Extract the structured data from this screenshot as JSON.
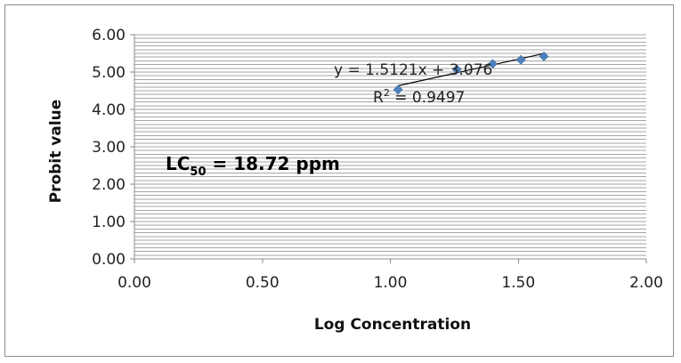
{
  "chart_data": {
    "type": "scatter",
    "xlabel": "Log Concentration",
    "ylabel": "Probit value",
    "xlim": [
      0,
      2
    ],
    "ylim": [
      0,
      6
    ],
    "x_ticks": [
      "0.00",
      "0.50",
      "1.00",
      "1.50",
      "2.00"
    ],
    "y_ticks": [
      "0.00",
      "1.00",
      "2.00",
      "3.00",
      "4.00",
      "5.00",
      "6.00"
    ],
    "y_minor_step": 0.1,
    "grid": "horizontal",
    "legend": "none",
    "series": [
      {
        "x": [
          1.03,
          1.26,
          1.4,
          1.51,
          1.6
        ],
        "y": [
          4.53,
          5.07,
          5.22,
          5.33,
          5.42
        ],
        "marker": "diamond"
      }
    ],
    "trendline": {
      "type": "linear",
      "slope": 1.5121,
      "intercept": 3.076,
      "x_range": [
        1.03,
        1.6
      ],
      "equation": "y = 1.5121x + 3.076",
      "r2_prefix": "R",
      "r2_suffix": " = 0.9497"
    },
    "annotation": {
      "prefix": "LC",
      "subscript": "50",
      "suffix": " = 18.72 ppm"
    },
    "colors": {
      "marker": "#4f81bd",
      "trendline": "#000000",
      "grid": "#a6a6a6",
      "axis": "#8c8c8c"
    }
  }
}
